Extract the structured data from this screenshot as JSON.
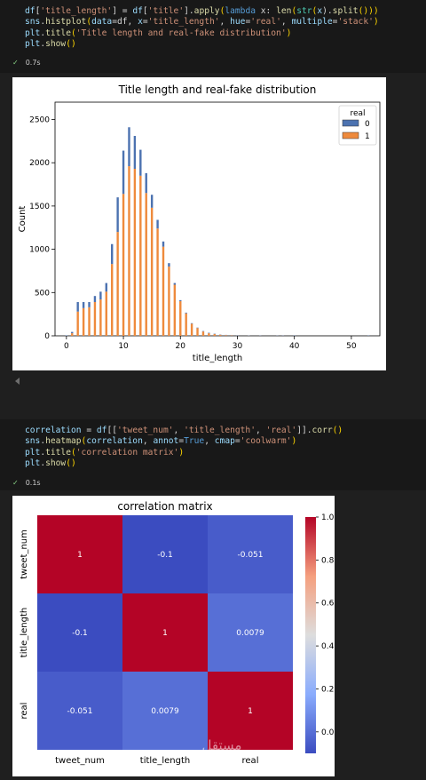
{
  "cell1": {
    "lines": [
      [
        [
          "df",
          "v"
        ],
        [
          "[",
          "o"
        ],
        [
          "'title_length'",
          "s"
        ],
        [
          "] = ",
          "o"
        ],
        [
          "df",
          "v"
        ],
        [
          "[",
          "o"
        ],
        [
          "'title'",
          "s"
        ],
        [
          "].",
          "o"
        ],
        [
          "apply",
          "f"
        ],
        [
          "(",
          "b"
        ],
        [
          "lambda",
          "k"
        ],
        [
          " x: ",
          "o"
        ],
        [
          "len",
          "f"
        ],
        [
          "(",
          "b"
        ],
        [
          "str",
          "c"
        ],
        [
          "(",
          "b"
        ],
        [
          "x",
          "v"
        ],
        [
          ").",
          "o"
        ],
        [
          "split",
          "f"
        ],
        [
          "()))",
          "b"
        ]
      ],
      [
        [
          "sns",
          "v"
        ],
        [
          ".",
          "o"
        ],
        [
          "histplot",
          "f"
        ],
        [
          "(",
          "b"
        ],
        [
          "data",
          "v"
        ],
        [
          "=df, ",
          "o"
        ],
        [
          "x",
          "v"
        ],
        [
          "=",
          "o"
        ],
        [
          "'title_length'",
          "s"
        ],
        [
          ", ",
          "o"
        ],
        [
          "hue",
          "v"
        ],
        [
          "=",
          "o"
        ],
        [
          "'real'",
          "s"
        ],
        [
          ", ",
          "o"
        ],
        [
          "multiple",
          "v"
        ],
        [
          "=",
          "o"
        ],
        [
          "'stack'",
          "s"
        ],
        [
          ")",
          "b"
        ]
      ],
      [
        [
          "plt",
          "v"
        ],
        [
          ".",
          "o"
        ],
        [
          "title",
          "f"
        ],
        [
          "(",
          "b"
        ],
        [
          "'Title length and real-fake distribution'",
          "s"
        ],
        [
          ")",
          "b"
        ]
      ],
      [
        [
          "plt",
          "v"
        ],
        [
          ".",
          "o"
        ],
        [
          "show",
          "f"
        ],
        [
          "()",
          "b"
        ]
      ]
    ],
    "time": "0.7s"
  },
  "cell2": {
    "lines": [
      [
        [
          "correlation",
          "v"
        ],
        [
          " = ",
          "o"
        ],
        [
          "df",
          "v"
        ],
        [
          "[[",
          "o"
        ],
        [
          "'tweet_num'",
          "s"
        ],
        [
          ", ",
          "o"
        ],
        [
          "'title_length'",
          "s"
        ],
        [
          ", ",
          "o"
        ],
        [
          "'real'",
          "s"
        ],
        [
          "]].",
          "o"
        ],
        [
          "corr",
          "f"
        ],
        [
          "()",
          "b"
        ]
      ],
      [
        [
          "sns",
          "v"
        ],
        [
          ".",
          "o"
        ],
        [
          "heatmap",
          "f"
        ],
        [
          "(",
          "b"
        ],
        [
          "correlation",
          "v"
        ],
        [
          ", ",
          "o"
        ],
        [
          "annot",
          "v"
        ],
        [
          "=",
          "o"
        ],
        [
          "True",
          "k"
        ],
        [
          ", ",
          "o"
        ],
        [
          "cmap",
          "v"
        ],
        [
          "=",
          "o"
        ],
        [
          "'coolwarm'",
          "s"
        ],
        [
          ")",
          "b"
        ]
      ],
      [
        [
          "plt",
          "v"
        ],
        [
          ".",
          "o"
        ],
        [
          "title",
          "f"
        ],
        [
          "(",
          "b"
        ],
        [
          "'correlation matrix'",
          "s"
        ],
        [
          ")",
          "b"
        ]
      ],
      [
        [
          "plt",
          "v"
        ],
        [
          ".",
          "o"
        ],
        [
          "show",
          "f"
        ],
        [
          "()",
          "b"
        ]
      ]
    ],
    "time": "0.1s"
  },
  "chart_data": [
    {
      "type": "bar",
      "title": "Title length and real-fake distribution",
      "xlabel": "title_length",
      "ylabel": "Count",
      "xlim": [
        -2,
        55
      ],
      "ylim": [
        0,
        2700
      ],
      "xticks": [
        0,
        10,
        20,
        30,
        40,
        50
      ],
      "yticks": [
        0,
        500,
        1000,
        1500,
        2000,
        2500
      ],
      "legend_title": "real",
      "legend_position": "top-right",
      "colors": {
        "0": "#4c72b0",
        "1": "#ee8a3c"
      },
      "x": [
        0,
        1,
        2,
        3,
        4,
        5,
        6,
        7,
        8,
        9,
        10,
        11,
        12,
        13,
        14,
        15,
        16,
        17,
        18,
        19,
        20,
        21,
        22,
        23,
        24,
        25,
        26,
        27,
        28,
        29,
        30,
        32,
        34,
        37,
        38,
        40,
        53
      ],
      "series": [
        {
          "name": "0",
          "values": [
            5,
            15,
            110,
            70,
            60,
            70,
            90,
            100,
            230,
            400,
            500,
            450,
            380,
            300,
            230,
            150,
            100,
            60,
            40,
            20,
            12,
            8,
            6,
            5,
            5,
            5,
            4,
            3,
            3,
            3,
            4,
            3,
            3,
            3,
            3,
            3,
            3
          ]
        },
        {
          "name": "1",
          "values": [
            0,
            30,
            280,
            320,
            330,
            390,
            420,
            510,
            830,
            1200,
            1640,
            1960,
            1930,
            1850,
            1650,
            1480,
            1240,
            1030,
            800,
            590,
            400,
            260,
            140,
            90,
            50,
            30,
            20,
            12,
            8,
            5,
            2,
            2,
            1,
            1,
            1,
            0,
            0
          ]
        }
      ]
    },
    {
      "type": "heatmap",
      "title": "correlation matrix",
      "labels": [
        "tweet_num",
        "title_length",
        "real"
      ],
      "values": [
        [
          1,
          -0.1,
          -0.051
        ],
        [
          -0.1,
          1,
          0.0079
        ],
        [
          -0.051,
          0.0079,
          1
        ]
      ],
      "annotations": [
        [
          "1",
          "-0.1",
          "-0.051"
        ],
        [
          "-0.1",
          "1",
          "0.0079"
        ],
        [
          "-0.051",
          "0.0079",
          "1"
        ]
      ],
      "colorbar_ticks": [
        "0.0",
        "0.2",
        "0.4",
        "0.6",
        "0.8",
        "1.0"
      ],
      "colorbar_range": [
        -0.1,
        1.0
      ],
      "cmap": "coolwarm"
    }
  ],
  "watermark": {
    "text": "مستقل",
    "sub": "mostaql.com"
  }
}
